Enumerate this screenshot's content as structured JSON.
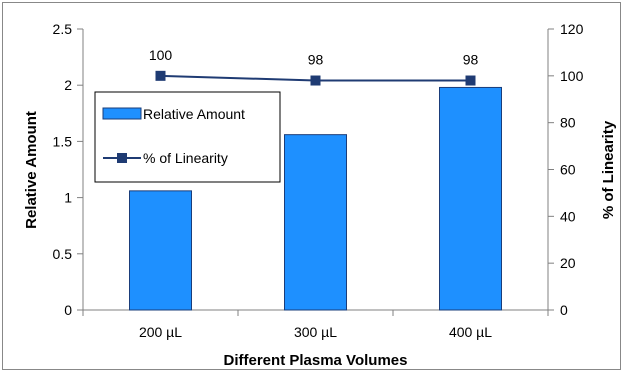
{
  "chart_data": {
    "type": "bar",
    "categories": [
      "200 µL",
      "300 µL",
      "400 µL"
    ],
    "xlabel": "Different Plasma Volumes",
    "ylabel": "Relative Amount",
    "y2label": "% of Linearity",
    "ylim": [
      0,
      2.5
    ],
    "y2lim": [
      0,
      120
    ],
    "yticks": [
      "0",
      "0.5",
      "1",
      "1.5",
      "2",
      "2.5"
    ],
    "y2ticks": [
      "0",
      "20",
      "40",
      "60",
      "80",
      "100",
      "120"
    ],
    "grid": false,
    "legend": "inside-left",
    "series": [
      {
        "name": "Relative Amount",
        "type": "bar",
        "axis": "left",
        "values": [
          1.06,
          1.56,
          1.98
        ],
        "color": "#1e90ff"
      },
      {
        "name": "% of Linearity",
        "type": "line",
        "axis": "right",
        "values": [
          100,
          98,
          98
        ],
        "labels": [
          "100",
          "98",
          "98"
        ],
        "color": "#1f3b73"
      }
    ]
  }
}
